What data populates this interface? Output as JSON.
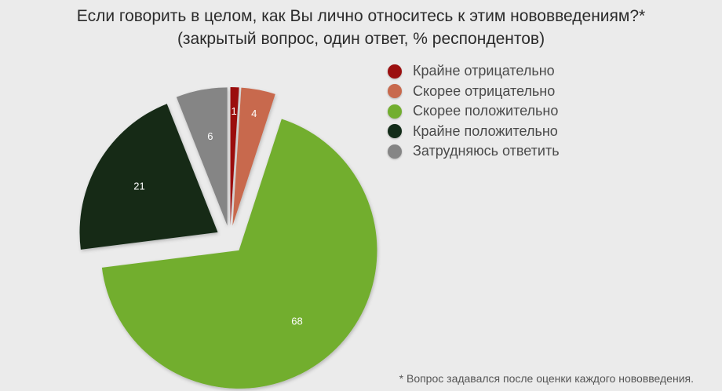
{
  "chart_data": {
    "type": "pie",
    "title": "Если говорить в целом, как Вы лично относитесь к этим нововведениям?*",
    "subtitle": "(закрытый вопрос, один ответ, % респондентов)",
    "legend_position": "top-right",
    "slices": [
      {
        "label": "Крайне отрицательно",
        "value": 1,
        "color": "#9b0f0f"
      },
      {
        "label": "Скорее отрицательно",
        "value": 4,
        "color": "#c8694d"
      },
      {
        "label": "Скорее положительно",
        "value": 68,
        "color": "#72ae2f"
      },
      {
        "label": "Крайне положительно",
        "value": 21,
        "color": "#132c19"
      },
      {
        "label": "Затрудняюсь ответить",
        "value": 6,
        "color": "#858585"
      }
    ],
    "footnote": "* Вопрос задавался после оценки каждого нововведения."
  }
}
